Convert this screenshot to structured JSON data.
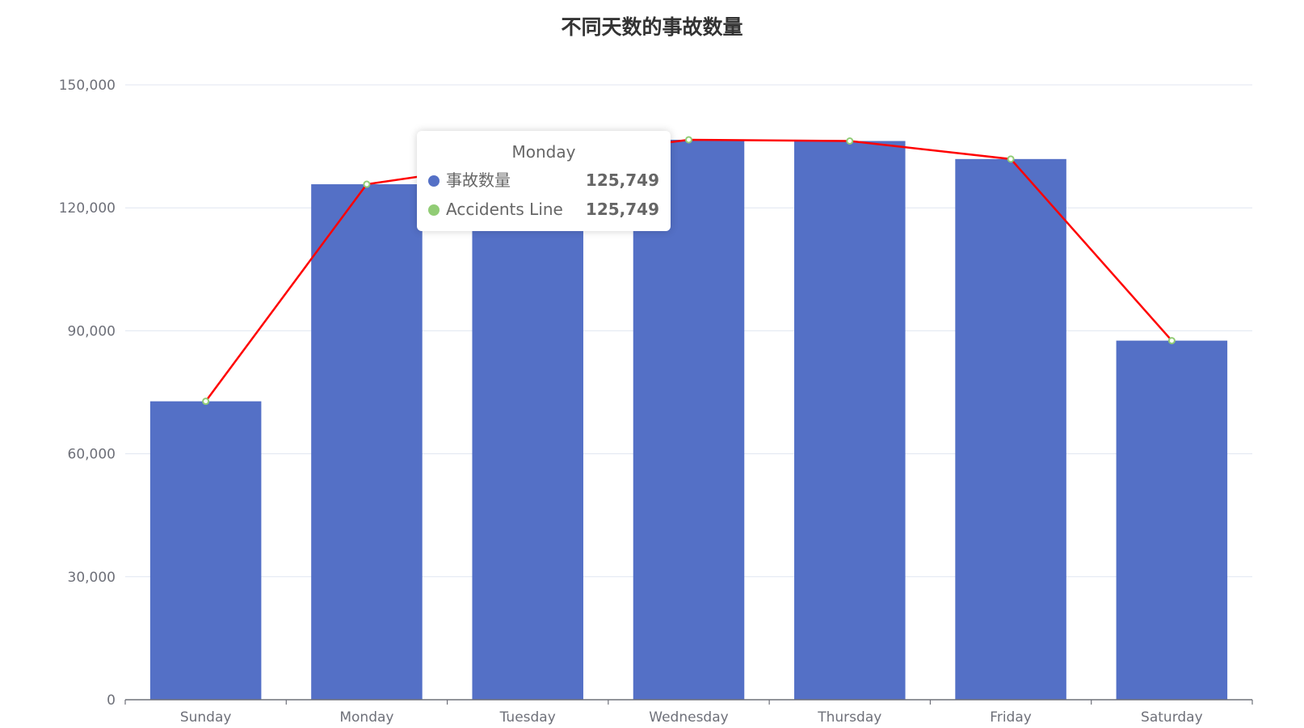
{
  "chart_data": {
    "type": "bar",
    "title": "不同天数的事故数量",
    "categories": [
      "Sunday",
      "Monday",
      "Tuesday",
      "Wednesday",
      "Thursday",
      "Friday",
      "Saturday"
    ],
    "series": [
      {
        "name": "事故数量",
        "type": "bar",
        "color": "#5470c6",
        "values": [
          72800,
          125749,
          131500,
          136600,
          136300,
          131900,
          87600
        ]
      },
      {
        "name": "Accidents Line",
        "type": "line",
        "color": "#ff0000",
        "marker_color": "#91cc75",
        "values": [
          72800,
          125749,
          131500,
          136600,
          136300,
          131900,
          87600
        ]
      }
    ],
    "ylim": [
      0,
      150000
    ],
    "yticks": [
      0,
      30000,
      60000,
      90000,
      120000,
      150000
    ],
    "ytick_labels": [
      "0",
      "30,000",
      "60,000",
      "90,000",
      "120,000",
      "150,000"
    ],
    "grid": true,
    "legend": "none",
    "tooltip": {
      "title": "Monday",
      "rows": [
        {
          "name": "事故数量",
          "value": "125,749",
          "color": "#5470c6"
        },
        {
          "name": "Accidents Line",
          "value": "125,749",
          "color": "#91cc75"
        }
      ]
    }
  }
}
